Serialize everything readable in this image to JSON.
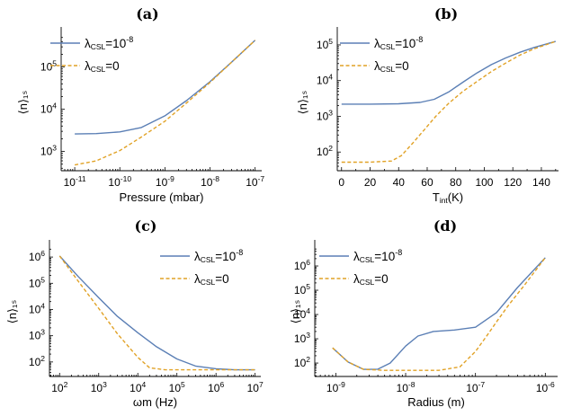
{
  "chart_data": [
    {
      "panel": "(a)",
      "type": "line",
      "ylabel": "⟨n⟩₁ₛ",
      "xlabel": "Pressure (mbar)",
      "xscale": "log",
      "yscale": "log",
      "xlim": [
        5e-12,
        1.4e-07
      ],
      "ylim": [
        350,
        600000
      ],
      "xticks": [
        1e-11,
        1e-10,
        1e-09,
        1e-08,
        1e-07
      ],
      "xtick_labels": [
        [
          "10",
          "-11"
        ],
        [
          "10",
          "-10"
        ],
        [
          "10",
          "-9"
        ],
        [
          "10",
          "-8"
        ],
        [
          "10",
          "-7"
        ]
      ],
      "yticks": [
        1000,
        10000,
        100000
      ],
      "ytick_labels": [
        [
          "10",
          "3"
        ],
        [
          "10",
          "4"
        ],
        [
          "10",
          "5"
        ]
      ],
      "legend": "top-left",
      "series": [
        {
          "name": "λCSL=10⁻⁸",
          "color": "#5b7fb5",
          "dash": "solid",
          "points": [
            [
              1e-11,
              2600
            ],
            [
              3e-11,
              2650
            ],
            [
              1e-10,
              2900
            ],
            [
              3e-10,
              3700
            ],
            [
              1e-09,
              7000
            ],
            [
              3e-09,
              16000
            ],
            [
              1e-08,
              45000
            ],
            [
              3e-08,
              130000
            ],
            [
              1e-07,
              430000
            ]
          ]
        },
        {
          "name": "λCSL=0",
          "color": "#e1a226",
          "dash": "dashed",
          "points": [
            [
              1e-11,
              480
            ],
            [
              3e-11,
              600
            ],
            [
              1e-10,
              1050
            ],
            [
              3e-10,
              2200
            ],
            [
              1e-09,
              5200
            ],
            [
              3e-09,
              14000
            ],
            [
              1e-08,
              43000
            ],
            [
              3e-08,
              130000
            ],
            [
              1e-07,
              430000
            ]
          ]
        }
      ]
    },
    {
      "panel": "(b)",
      "type": "line",
      "ylabel": "⟨n⟩₁ₛ",
      "xlabel": "T",
      "xlabel_sub": "int",
      "xlabel_suffix": "(K)",
      "xscale": "linear",
      "yscale": "log",
      "xlim": [
        -3,
        152
      ],
      "ylim": [
        30,
        200000
      ],
      "xticks": [
        0,
        20,
        40,
        60,
        80,
        100,
        120,
        140
      ],
      "xtick_labels": [
        [
          "0",
          ""
        ],
        [
          "20",
          ""
        ],
        [
          "40",
          ""
        ],
        [
          "60",
          ""
        ],
        [
          "80",
          ""
        ],
        [
          "100",
          ""
        ],
        [
          "120",
          ""
        ],
        [
          "140",
          ""
        ]
      ],
      "yticks": [
        100,
        1000,
        10000,
        100000
      ],
      "ytick_labels": [
        [
          "10",
          "2"
        ],
        [
          "10",
          "3"
        ],
        [
          "10",
          "4"
        ],
        [
          "10",
          "5"
        ]
      ],
      "legend": "top-left",
      "series": [
        {
          "name": "λCSL=10⁻⁸",
          "color": "#5b7fb5",
          "dash": "solid",
          "points": [
            [
              0,
              2200
            ],
            [
              20,
              2200
            ],
            [
              40,
              2250
            ],
            [
              55,
              2450
            ],
            [
              65,
              3000
            ],
            [
              75,
              4800
            ],
            [
              85,
              9000
            ],
            [
              95,
              16500
            ],
            [
              105,
              28000
            ],
            [
              115,
              43000
            ],
            [
              125,
              62000
            ],
            [
              135,
              85000
            ],
            [
              150,
              125000
            ]
          ]
        },
        {
          "name": "λCSL=0",
          "color": "#e1a226",
          "dash": "dashed",
          "points": [
            [
              0,
              52
            ],
            [
              20,
              52
            ],
            [
              35,
              56
            ],
            [
              42,
              80
            ],
            [
              50,
              180
            ],
            [
              58,
              420
            ],
            [
              66,
              1000
            ],
            [
              75,
              2300
            ],
            [
              85,
              5000
            ],
            [
              95,
              9500
            ],
            [
              105,
              18000
            ],
            [
              115,
              31000
            ],
            [
              125,
              52000
            ],
            [
              135,
              78000
            ],
            [
              150,
              125000
            ]
          ]
        }
      ]
    },
    {
      "panel": "(c)",
      "type": "line",
      "ylabel": "⟨n⟩₁ₛ",
      "xlabel": "ωm (Hz)",
      "xscale": "log",
      "yscale": "log",
      "xlim": [
        55,
        14000000.0
      ],
      "ylim": [
        28,
        2400000
      ],
      "xticks": [
        100,
        1000,
        10000,
        100000,
        1000000,
        10000000
      ],
      "xtick_labels": [
        [
          "10",
          "2"
        ],
        [
          "10",
          "3"
        ],
        [
          "10",
          "4"
        ],
        [
          "10",
          "5"
        ],
        [
          "10",
          "6"
        ],
        [
          "10",
          "7"
        ]
      ],
      "yticks": [
        100,
        1000,
        10000,
        100000,
        1000000
      ],
      "ytick_labels": [
        [
          "10",
          "2"
        ],
        [
          "10",
          "3"
        ],
        [
          "10",
          "4"
        ],
        [
          "10",
          "5"
        ],
        [
          "10",
          "6"
        ]
      ],
      "legend": "top-right",
      "series": [
        {
          "name": "λCSL=10⁻⁸",
          "color": "#5b7fb5",
          "dash": "solid",
          "points": [
            [
              100,
              1100000
            ],
            [
              300,
              180000
            ],
            [
              1000,
              28000
            ],
            [
              3000,
              5500
            ],
            [
              10000,
              1300
            ],
            [
              30000,
              380
            ],
            [
              100000,
              130
            ],
            [
              300000,
              70
            ],
            [
              1000000,
              55
            ],
            [
              3000000,
              50
            ],
            [
              10000000,
              50
            ]
          ]
        },
        {
          "name": "λCSL=0",
          "color": "#e1a226",
          "dash": "dashed",
          "points": [
            [
              100,
              1100000
            ],
            [
              300,
              120000
            ],
            [
              1000,
              11000
            ],
            [
              3000,
              1200
            ],
            [
              10000,
              150
            ],
            [
              20000,
              60
            ],
            [
              50000,
              50
            ],
            [
              10000000,
              50
            ]
          ]
        }
      ]
    },
    {
      "panel": "(d)",
      "type": "line",
      "ylabel": "⟨n⟩₁ₛ",
      "xlabel": "Radius (m)",
      "xscale": "log",
      "yscale": "log",
      "xlim": [
        5e-10,
        1.5e-06
      ],
      "ylim": [
        28,
        6000000
      ],
      "xticks": [
        1e-09,
        1e-08,
        1e-07,
        1e-06
      ],
      "xtick_labels": [
        [
          "10",
          "-9"
        ],
        [
          "10",
          "-8"
        ],
        [
          "10",
          "-7"
        ],
        [
          "10",
          "-6"
        ]
      ],
      "yticks": [
        100,
        1000,
        10000,
        100000,
        1000000
      ],
      "ytick_labels": [
        [
          "10",
          "2"
        ],
        [
          "10",
          "3"
        ],
        [
          "10",
          "4"
        ],
        [
          "10",
          "5"
        ],
        [
          "10",
          "6"
        ]
      ],
      "legend": "top-left",
      "series": [
        {
          "name": "λCSL=10⁻⁸",
          "color": "#5b7fb5",
          "dash": "solid",
          "points": [
            [
              9e-10,
              420
            ],
            [
              1.5e-09,
              110
            ],
            [
              2.5e-09,
              55
            ],
            [
              4e-09,
              56
            ],
            [
              6e-09,
              100
            ],
            [
              1e-08,
              500
            ],
            [
              1.5e-08,
              1300
            ],
            [
              2.5e-08,
              2000
            ],
            [
              5e-08,
              2300
            ],
            [
              1e-07,
              3000
            ],
            [
              2e-07,
              12000
            ],
            [
              4e-07,
              130000
            ],
            [
              1e-06,
              2200000
            ]
          ]
        },
        {
          "name": "λCSL=0",
          "color": "#e1a226",
          "dash": "dashed",
          "points": [
            [
              9e-10,
              420
            ],
            [
              1.5e-09,
              110
            ],
            [
              2.5e-09,
              55
            ],
            [
              5e-09,
              50
            ],
            [
              1e-08,
              50
            ],
            [
              3e-08,
              50
            ],
            [
              6e-08,
              70
            ],
            [
              1e-07,
              300
            ],
            [
              1.5e-07,
              1500
            ],
            [
              2e-07,
              5000
            ],
            [
              3e-07,
              25000
            ],
            [
              5e-07,
              160000
            ],
            [
              1e-06,
              2200000
            ]
          ]
        }
      ]
    }
  ]
}
